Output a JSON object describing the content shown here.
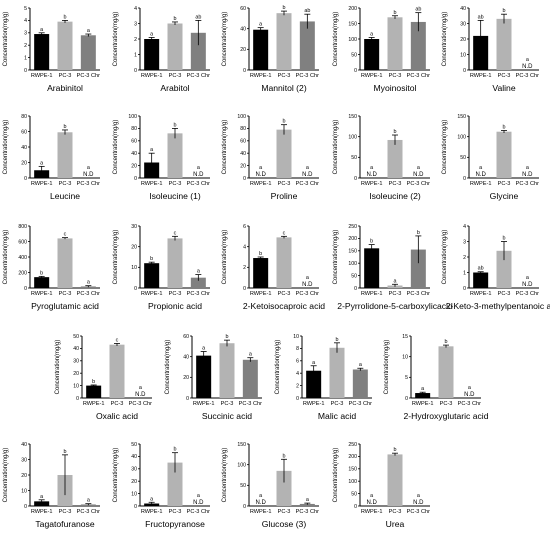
{
  "chart_data": [
    {
      "type": "bar",
      "title": "Arabinitol",
      "ylabel": "Concentration(mg/g)",
      "categories": [
        "RWPE-1",
        "PC-3",
        "PC-3 Chr"
      ],
      "values": [
        2.9,
        3.9,
        2.8
      ],
      "errors": [
        0.1,
        0.1,
        0.1
      ],
      "letters": [
        "a",
        "b",
        "a"
      ],
      "ylim": [
        0,
        5
      ],
      "yticks": [
        0,
        1,
        2,
        3,
        4,
        5
      ],
      "colors": [
        "#000000",
        "#b3b3b3",
        "#808080"
      ]
    },
    {
      "type": "bar",
      "title": "Arabitol",
      "ylabel": "Concentration(mg/g)",
      "categories": [
        "RWPE-1",
        "PC-3",
        "PC-3 Chr"
      ],
      "values": [
        2.0,
        3.0,
        2.4
      ],
      "errors": [
        0.1,
        0.1,
        0.8
      ],
      "letters": [
        "a",
        "b",
        "ab"
      ],
      "ylim": [
        0,
        4
      ],
      "yticks": [
        0,
        1,
        2,
        3,
        4
      ],
      "colors": [
        "#000000",
        "#b3b3b3",
        "#808080"
      ]
    },
    {
      "type": "bar",
      "title": "Mannitol  (2)",
      "ylabel": "Concentration(mg/g)",
      "categories": [
        "RWPE-1",
        "PC-3",
        "PC-3 Chr"
      ],
      "values": [
        39,
        55,
        47
      ],
      "errors": [
        2,
        2,
        7
      ],
      "letters": [
        "a",
        "b",
        "ab"
      ],
      "ylim": [
        0,
        60
      ],
      "yticks": [
        0,
        20,
        40,
        60
      ],
      "colors": [
        "#000000",
        "#b3b3b3",
        "#808080"
      ]
    },
    {
      "type": "bar",
      "title": "Myoinositol",
      "ylabel": "Concentration(mg/g)",
      "categories": [
        "RWPE-1",
        "PC-3",
        "PC-3 Chr"
      ],
      "values": [
        100,
        170,
        155
      ],
      "errors": [
        5,
        5,
        30
      ],
      "letters": [
        "a",
        "b",
        "ab"
      ],
      "ylim": [
        0,
        200
      ],
      "yticks": [
        0,
        50,
        100,
        150,
        200
      ],
      "colors": [
        "#000000",
        "#b3b3b3",
        "#808080"
      ]
    },
    {
      "type": "bar",
      "title": "Valine",
      "ylabel": "Concentration(mg/g)",
      "categories": [
        "RWPE-1",
        "PC-3",
        "PC-3 Chr"
      ],
      "values": [
        22,
        33,
        0
      ],
      "errors": [
        10,
        3,
        0
      ],
      "letters": [
        "ab",
        "b",
        "a"
      ],
      "nd": [
        false,
        false,
        true
      ],
      "nd_label": "N.D",
      "ylim": [
        0,
        40
      ],
      "yticks": [
        0,
        10,
        20,
        30,
        40
      ],
      "colors": [
        "#000000",
        "#b3b3b3",
        "#808080"
      ]
    },
    {
      "type": "bar",
      "title": "Leucine",
      "ylabel": "Concentration(mg/g)",
      "categories": [
        "RWPE-1",
        "PC-3",
        "PC-3 Chr"
      ],
      "values": [
        10,
        59,
        0
      ],
      "errors": [
        5,
        3,
        0
      ],
      "letters": [
        "a",
        "b",
        "a"
      ],
      "nd": [
        false,
        false,
        true
      ],
      "nd_label": "N.D",
      "ylim": [
        0,
        80
      ],
      "yticks": [
        0,
        20,
        40,
        60,
        80
      ],
      "colors": [
        "#000000",
        "#b3b3b3",
        "#808080"
      ]
    },
    {
      "type": "bar",
      "title": "Isoleucine (1)",
      "ylabel": "Concentration(mg/g)",
      "categories": [
        "RWPE-1",
        "PC-3",
        "PC-3 Chr"
      ],
      "values": [
        25,
        72,
        0
      ],
      "errors": [
        15,
        8,
        0
      ],
      "letters": [
        "a",
        "b",
        "a"
      ],
      "nd": [
        false,
        false,
        true
      ],
      "nd_label": "N.D",
      "ylim": [
        0,
        100
      ],
      "yticks": [
        0,
        20,
        40,
        60,
        80,
        100
      ],
      "colors": [
        "#000000",
        "#b3b3b3",
        "#808080"
      ]
    },
    {
      "type": "bar",
      "title": "Proline",
      "ylabel": "Concentration(mg/g)",
      "categories": [
        "RWPE-1",
        "PC-3",
        "PC-3 Chr"
      ],
      "values": [
        0,
        78,
        0
      ],
      "errors": [
        0,
        8,
        0
      ],
      "letters": [
        "a",
        "b",
        "a"
      ],
      "nd": [
        true,
        false,
        true
      ],
      "nd_label": "N.D",
      "ylim": [
        0,
        100
      ],
      "yticks": [
        0,
        20,
        40,
        60,
        80,
        100
      ],
      "colors": [
        "#000000",
        "#b3b3b3",
        "#808080"
      ]
    },
    {
      "type": "bar",
      "title": "Isoleucine (2)",
      "ylabel": "Concentration(mg/g)",
      "categories": [
        "RWPE-1",
        "PC-3",
        "PC-3 Chr"
      ],
      "values": [
        0,
        92,
        0
      ],
      "errors": [
        0,
        12,
        0
      ],
      "letters": [
        "a",
        "b",
        "a"
      ],
      "nd": [
        true,
        false,
        true
      ],
      "nd_label": "N.D",
      "ylim": [
        0,
        150
      ],
      "yticks": [
        0,
        50,
        100,
        150
      ],
      "colors": [
        "#000000",
        "#b3b3b3",
        "#808080"
      ]
    },
    {
      "type": "bar",
      "title": "Glycine",
      "ylabel": "Concentration(mg/g)",
      "categories": [
        "RWPE-1",
        "PC-3",
        "PC-3 Chr"
      ],
      "values": [
        0,
        112,
        0
      ],
      "errors": [
        0,
        3,
        0
      ],
      "letters": [
        "a",
        "b",
        "a"
      ],
      "nd": [
        true,
        false,
        true
      ],
      "nd_label": "N.D",
      "ylim": [
        0,
        150
      ],
      "yticks": [
        0,
        50,
        100,
        150
      ],
      "colors": [
        "#000000",
        "#b3b3b3",
        "#808080"
      ]
    },
    {
      "type": "bar",
      "title": "Pyroglutamic acid",
      "ylabel": "Concentration(mg/g)",
      "categories": [
        "RWPE-1",
        "PC-3",
        "PC-3 Chr"
      ],
      "values": [
        140,
        640,
        20
      ],
      "errors": [
        10,
        10,
        10
      ],
      "letters": [
        "b",
        "c",
        "a"
      ],
      "ylim": [
        0,
        800
      ],
      "yticks": [
        0,
        200,
        400,
        600,
        800
      ],
      "colors": [
        "#000000",
        "#b3b3b3",
        "#808080"
      ]
    },
    {
      "type": "bar",
      "title": "Propionic acid",
      "ylabel": "Concentration(mg/g)",
      "categories": [
        "RWPE-1",
        "PC-3",
        "PC-3 Chr"
      ],
      "values": [
        12,
        24,
        5
      ],
      "errors": [
        0.5,
        1,
        1.5
      ],
      "letters": [
        "b",
        "c",
        "a"
      ],
      "ylim": [
        0,
        30
      ],
      "yticks": [
        0,
        10,
        20,
        30
      ],
      "colors": [
        "#000000",
        "#b3b3b3",
        "#808080"
      ]
    },
    {
      "type": "bar",
      "title": "2-Ketoisocaproic acid",
      "ylabel": "Concentration(mg/g)",
      "categories": [
        "RWPE-1",
        "PC-3",
        "PC-3 Chr"
      ],
      "values": [
        2.9,
        4.9,
        0
      ],
      "errors": [
        0.1,
        0.1,
        0
      ],
      "letters": [
        "b",
        "c",
        "a"
      ],
      "nd": [
        false,
        false,
        true
      ],
      "nd_label": "N.D",
      "ylim": [
        0,
        6
      ],
      "yticks": [
        0,
        2,
        4,
        6
      ],
      "colors": [
        "#000000",
        "#b3b3b3",
        "#808080"
      ]
    },
    {
      "type": "bar",
      "title": "2-Pyrrolidone-5-carboxylicacid",
      "ylabel": "Concentration(mg/g)",
      "categories": [
        "RWPE-1",
        "PC-3",
        "PC-3 Chr"
      ],
      "values": [
        160,
        10,
        155
      ],
      "errors": [
        15,
        5,
        55
      ],
      "letters": [
        "b",
        "a",
        "b"
      ],
      "ylim": [
        0,
        250
      ],
      "yticks": [
        0,
        50,
        100,
        150,
        200,
        250
      ],
      "colors": [
        "#000000",
        "#b3b3b3",
        "#808080"
      ]
    },
    {
      "type": "bar",
      "title": "2-Keto-3-methylpentanoic acid",
      "ylabel": "Concentration(mg/g)",
      "categories": [
        "RWPE-1",
        "PC-3",
        "PC-3 Chr"
      ],
      "values": [
        1.0,
        2.4,
        0
      ],
      "errors": [
        0.05,
        0.6,
        0
      ],
      "letters": [
        "ab",
        "b",
        "a"
      ],
      "nd": [
        false,
        false,
        true
      ],
      "nd_label": "N.D",
      "ylim": [
        0,
        4
      ],
      "yticks": [
        0,
        1,
        2,
        3,
        4
      ],
      "colors": [
        "#000000",
        "#b3b3b3",
        "#808080"
      ]
    },
    {
      "type": "bar",
      "title": "Oxalic acid",
      "ylabel": "Concentration(mg/g)",
      "categories": [
        "RWPE-1",
        "PC-3",
        "PC-3 Chr"
      ],
      "values": [
        10,
        43,
        0
      ],
      "errors": [
        0.5,
        1,
        0
      ],
      "letters": [
        "b",
        "c",
        "a"
      ],
      "nd": [
        false,
        false,
        true
      ],
      "nd_label": "N.D",
      "ylim": [
        0,
        50
      ],
      "yticks": [
        0,
        10,
        20,
        30,
        40,
        50
      ],
      "colors": [
        "#000000",
        "#b3b3b3",
        "#808080"
      ]
    },
    {
      "type": "bar",
      "title": "Succinic acid",
      "ylabel": "Concentration(mg/g)",
      "categories": [
        "RWPE-1",
        "PC-3",
        "PC-3 Chr"
      ],
      "values": [
        41,
        53,
        37
      ],
      "errors": [
        4,
        3,
        2
      ],
      "letters": [
        "a",
        "b",
        "a"
      ],
      "ylim": [
        0,
        60
      ],
      "yticks": [
        0,
        20,
        40,
        60
      ],
      "colors": [
        "#000000",
        "#b3b3b3",
        "#808080"
      ]
    },
    {
      "type": "bar",
      "title": "Malic acid",
      "ylabel": "Concentration(mg/g)",
      "categories": [
        "RWPE-1",
        "PC-3",
        "PC-3 Chr"
      ],
      "values": [
        4.4,
        8.1,
        4.6
      ],
      "errors": [
        0.8,
        0.8,
        0.2
      ],
      "letters": [
        "a",
        "b",
        "a"
      ],
      "ylim": [
        0,
        10
      ],
      "yticks": [
        0,
        2,
        4,
        6,
        8,
        10
      ],
      "colors": [
        "#000000",
        "#b3b3b3",
        "#808080"
      ]
    },
    {
      "type": "bar",
      "title": "2-Hydroxyglutaric acid",
      "ylabel": "Concentration(mg/g)",
      "categories": [
        "RWPE-1",
        "PC-3",
        "PC-3 Chr"
      ],
      "values": [
        1.2,
        12.5,
        0
      ],
      "errors": [
        0.2,
        0.3,
        0
      ],
      "letters": [
        "a",
        "b",
        "a"
      ],
      "nd": [
        false,
        false,
        true
      ],
      "nd_label": "N.D",
      "ylim": [
        0,
        15
      ],
      "yticks": [
        0,
        5,
        10,
        15
      ],
      "colors": [
        "#000000",
        "#b3b3b3",
        "#808080"
      ]
    },
    {
      "type": "bar",
      "title": "Tagatofuranose",
      "ylabel": "Concentration(mg/g)",
      "categories": [
        "RWPE-1",
        "PC-3",
        "PC-3 Chr"
      ],
      "values": [
        3,
        20,
        1
      ],
      "errors": [
        1,
        13,
        0.5
      ],
      "letters": [
        "a",
        "b",
        "a"
      ],
      "ylim": [
        0,
        40
      ],
      "yticks": [
        0,
        10,
        20,
        30,
        40
      ],
      "colors": [
        "#000000",
        "#b3b3b3",
        "#808080"
      ]
    },
    {
      "type": "bar",
      "title": "Fructopyranose",
      "ylabel": "Concentration(mg/g)",
      "categories": [
        "RWPE-1",
        "PC-3",
        "PC-3 Chr"
      ],
      "values": [
        2,
        35,
        0
      ],
      "errors": [
        1,
        8,
        0
      ],
      "letters": [
        "a",
        "b",
        "a"
      ],
      "nd": [
        false,
        false,
        true
      ],
      "nd_label": "N.D",
      "ylim": [
        0,
        50
      ],
      "yticks": [
        0,
        10,
        20,
        30,
        40,
        50
      ],
      "colors": [
        "#000000",
        "#b3b3b3",
        "#808080"
      ]
    },
    {
      "type": "bar",
      "title": "Glucose (3)",
      "ylabel": "Concentration(mg/g)",
      "categories": [
        "RWPE-1",
        "PC-3",
        "PC-3 Chr"
      ],
      "values": [
        0,
        85,
        5
      ],
      "errors": [
        0,
        28,
        2
      ],
      "letters": [
        "a",
        "b",
        "a"
      ],
      "nd": [
        true,
        false,
        false
      ],
      "nd_label": "N.D",
      "ylim": [
        0,
        150
      ],
      "yticks": [
        0,
        50,
        100,
        150
      ],
      "colors": [
        "#000000",
        "#b3b3b3",
        "#808080"
      ]
    },
    {
      "type": "bar",
      "title": "Urea",
      "ylabel": "Concentration(mg/g)",
      "categories": [
        "RWPE-1",
        "PC-3",
        "PC-3 Chr"
      ],
      "values": [
        0,
        208,
        0
      ],
      "errors": [
        0,
        5,
        0
      ],
      "letters": [
        "a",
        "b",
        "a"
      ],
      "nd": [
        true,
        false,
        true
      ],
      "nd_label": "N.D",
      "ylim": [
        0,
        250
      ],
      "yticks": [
        0,
        50,
        100,
        150,
        200,
        250
      ],
      "colors": [
        "#000000",
        "#b3b3b3",
        "#808080"
      ]
    }
  ]
}
